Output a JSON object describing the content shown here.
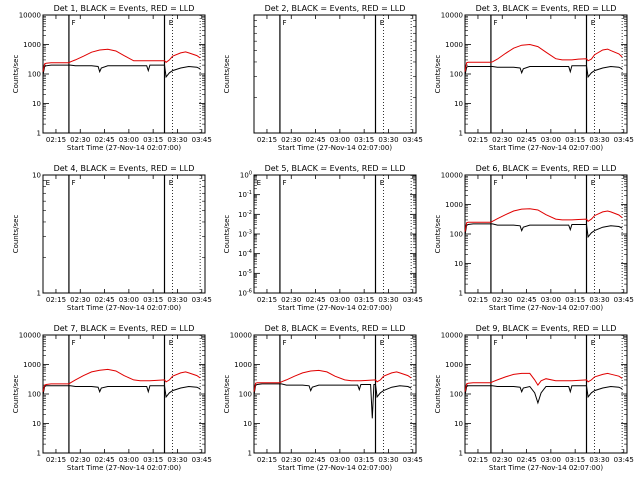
{
  "figure": {
    "xlabel": "Start Time (27-Nov-14 02:07:00)",
    "ylabel": "Counts/sec",
    "x_tick_labels": [
      "02:15",
      "02:30",
      "02:45",
      "03:00",
      "03:15",
      "03:30",
      "03:45"
    ],
    "colors": {
      "events": "#000000",
      "lld": "#e00000"
    }
  },
  "chart_data": [
    {
      "type": "line",
      "title": "Det 1, BLACK = Events, RED = LLD",
      "yscale": "log",
      "ylim": [
        1,
        10000
      ],
      "y_tick_labels": [
        "1",
        "10",
        "100",
        "1000",
        "10000"
      ],
      "x_minutes": [
        0,
        100
      ],
      "vlines_solid": [
        16,
        75
      ],
      "vlines_dotted": [
        80,
        97
      ],
      "markers": [
        {
          "x": 77,
          "y": 10000,
          "text": "E"
        },
        {
          "x": 17,
          "y": 10000,
          "text": "F"
        }
      ],
      "series": [
        {
          "name": "Events",
          "x": [
            0,
            1,
            2,
            5,
            10,
            16,
            17,
            20,
            25,
            30,
            34,
            35,
            36,
            40,
            46,
            50,
            56,
            60,
            64,
            65,
            66,
            70,
            75,
            76,
            78,
            80,
            85,
            90,
            95,
            97
          ],
          "values": [
            90,
            180,
            190,
            200,
            200,
            200,
            200,
            190,
            190,
            190,
            180,
            120,
            160,
            190,
            190,
            190,
            190,
            190,
            190,
            130,
            200,
            200,
            200,
            80,
            110,
            130,
            160,
            180,
            170,
            150
          ]
        },
        {
          "name": "LLD",
          "x": [
            0,
            1,
            2,
            5,
            10,
            16,
            17,
            20,
            25,
            30,
            35,
            40,
            45,
            50,
            56,
            60,
            64,
            66,
            70,
            75,
            76,
            78,
            80,
            85,
            88,
            90,
            95,
            97
          ],
          "values": [
            120,
            220,
            230,
            240,
            240,
            240,
            260,
            300,
            400,
            550,
            650,
            690,
            600,
            420,
            280,
            280,
            280,
            280,
            280,
            280,
            250,
            300,
            400,
            520,
            560,
            520,
            420,
            350
          ]
        }
      ]
    },
    {
      "type": "line",
      "title": "Det 2, BLACK = Events, RED = LLD",
      "yscale": "log",
      "ylim": [
        1,
        10
      ],
      "y_tick_labels": [],
      "x_minutes": [
        0,
        100
      ],
      "vlines_solid": [
        16,
        75
      ],
      "vlines_dotted": [
        80,
        97
      ],
      "markers": [
        {
          "x": 77,
          "y": 10,
          "text": "E"
        },
        {
          "x": 17,
          "y": 10,
          "text": "F"
        }
      ],
      "series": []
    },
    {
      "type": "line",
      "title": "Det 3, BLACK = Events, RED = LLD",
      "yscale": "log",
      "ylim": [
        1,
        10000
      ],
      "y_tick_labels": [
        "1",
        "10",
        "100",
        "1000",
        "10000"
      ],
      "x_minutes": [
        0,
        100
      ],
      "vlines_solid": [
        16,
        75
      ],
      "vlines_dotted": [
        80,
        97
      ],
      "markers": [
        {
          "x": 77,
          "y": 10000,
          "text": "E"
        },
        {
          "x": 17,
          "y": 10000,
          "text": "F"
        }
      ],
      "series": [
        {
          "name": "Events",
          "x": [
            0,
            1,
            2,
            5,
            10,
            16,
            17,
            20,
            25,
            30,
            34,
            35,
            36,
            40,
            46,
            50,
            56,
            60,
            64,
            65,
            66,
            70,
            75,
            76,
            78,
            80,
            85,
            90,
            95,
            97
          ],
          "values": [
            90,
            170,
            180,
            180,
            180,
            180,
            180,
            170,
            170,
            170,
            160,
            110,
            150,
            180,
            180,
            180,
            180,
            180,
            180,
            120,
            190,
            190,
            190,
            80,
            110,
            130,
            160,
            180,
            170,
            150
          ]
        },
        {
          "name": "LLD",
          "x": [
            0,
            1,
            2,
            5,
            10,
            16,
            17,
            20,
            25,
            30,
            35,
            40,
            45,
            50,
            56,
            60,
            64,
            66,
            70,
            75,
            76,
            78,
            80,
            85,
            88,
            90,
            95,
            97
          ],
          "values": [
            120,
            240,
            250,
            250,
            250,
            250,
            260,
            320,
            500,
            750,
            950,
            1000,
            850,
            550,
            330,
            300,
            300,
            300,
            320,
            330,
            280,
            320,
            450,
            650,
            700,
            620,
            480,
            380
          ]
        }
      ]
    },
    {
      "type": "line",
      "title": "Det 4, BLACK = Events, RED = LLD",
      "yscale": "log",
      "ylim": [
        1,
        10
      ],
      "y_tick_labels": [
        "1",
        "10"
      ],
      "x_minutes": [
        0,
        100
      ],
      "vlines_solid": [
        16,
        75
      ],
      "vlines_dotted": [
        80,
        97
      ],
      "markers": [
        {
          "x": 77,
          "y": 10,
          "text": "E"
        },
        {
          "x": 17,
          "y": 10,
          "text": "F"
        },
        {
          "x": 1,
          "y": 10,
          "text": "E"
        }
      ],
      "series": []
    },
    {
      "type": "line",
      "title": "Det 5, BLACK = Events, RED = LLD",
      "yscale": "log",
      "ylim": [
        1e-06,
        1
      ],
      "y_tick_labels": [
        "10^-6",
        "10^-5",
        "10^-4",
        "10^-3",
        "10^-2",
        "10^-1",
        "10^0"
      ],
      "x_minutes": [
        0,
        100
      ],
      "vlines_solid": [
        16,
        75
      ],
      "vlines_dotted": [
        80,
        97
      ],
      "markers": [
        {
          "x": 77,
          "y": 1,
          "text": "E"
        },
        {
          "x": 17,
          "y": 1,
          "text": "F"
        },
        {
          "x": 1,
          "y": 1,
          "text": "E"
        }
      ],
      "series": []
    },
    {
      "type": "line",
      "title": "Det 6, BLACK = Events, RED = LLD",
      "yscale": "log",
      "ylim": [
        1,
        10000
      ],
      "y_tick_labels": [
        "1",
        "10",
        "100",
        "1000",
        "10000"
      ],
      "x_minutes": [
        0,
        100
      ],
      "vlines_solid": [
        16,
        75
      ],
      "vlines_dotted": [
        80,
        97
      ],
      "markers": [
        {
          "x": 77,
          "y": 10000,
          "text": "E"
        },
        {
          "x": 17,
          "y": 10000,
          "text": "F"
        }
      ],
      "series": [
        {
          "name": "Events",
          "x": [
            0,
            1,
            2,
            5,
            10,
            16,
            17,
            20,
            25,
            30,
            34,
            35,
            36,
            40,
            46,
            50,
            56,
            60,
            64,
            65,
            66,
            70,
            75,
            76,
            78,
            80,
            85,
            90,
            95,
            97
          ],
          "values": [
            90,
            200,
            210,
            220,
            220,
            220,
            220,
            200,
            200,
            200,
            190,
            130,
            170,
            200,
            200,
            200,
            200,
            200,
            200,
            140,
            210,
            210,
            210,
            80,
            110,
            130,
            170,
            190,
            180,
            160
          ]
        },
        {
          "name": "LLD",
          "x": [
            0,
            1,
            2,
            5,
            10,
            16,
            17,
            20,
            25,
            30,
            35,
            40,
            45,
            50,
            56,
            60,
            64,
            66,
            70,
            75,
            76,
            78,
            80,
            85,
            88,
            90,
            95,
            97
          ],
          "values": [
            120,
            240,
            250,
            250,
            250,
            250,
            270,
            330,
            450,
            600,
            700,
            720,
            650,
            450,
            320,
            300,
            300,
            300,
            310,
            320,
            270,
            320,
            420,
            560,
            600,
            560,
            440,
            360
          ]
        }
      ]
    },
    {
      "type": "line",
      "title": "Det 7, BLACK = Events, RED = LLD",
      "yscale": "log",
      "ylim": [
        1,
        10000
      ],
      "y_tick_labels": [
        "1",
        "10",
        "100",
        "1000",
        "10000"
      ],
      "x_minutes": [
        0,
        100
      ],
      "vlines_solid": [
        16,
        75
      ],
      "vlines_dotted": [
        80,
        97
      ],
      "markers": [
        {
          "x": 77,
          "y": 10000,
          "text": "E"
        },
        {
          "x": 17,
          "y": 10000,
          "text": "F"
        }
      ],
      "series": [
        {
          "name": "Events",
          "x": [
            0,
            1,
            2,
            5,
            10,
            16,
            17,
            20,
            25,
            30,
            34,
            35,
            36,
            40,
            46,
            50,
            56,
            60,
            64,
            65,
            66,
            70,
            75,
            76,
            78,
            80,
            85,
            90,
            95,
            97
          ],
          "values": [
            90,
            180,
            190,
            190,
            190,
            190,
            190,
            180,
            180,
            180,
            170,
            120,
            160,
            180,
            180,
            180,
            180,
            180,
            180,
            120,
            190,
            190,
            190,
            80,
            110,
            130,
            160,
            180,
            170,
            150
          ]
        },
        {
          "name": "LLD",
          "x": [
            0,
            1,
            2,
            5,
            10,
            16,
            17,
            20,
            25,
            30,
            35,
            40,
            45,
            50,
            56,
            60,
            64,
            66,
            70,
            75,
            76,
            78,
            80,
            85,
            88,
            90,
            95,
            97
          ],
          "values": [
            120,
            200,
            210,
            220,
            220,
            220,
            240,
            300,
            420,
            560,
            640,
            680,
            600,
            420,
            300,
            280,
            280,
            280,
            290,
            300,
            260,
            300,
            400,
            520,
            560,
            520,
            420,
            350
          ]
        }
      ]
    },
    {
      "type": "line",
      "title": "Det 8, BLACK = Events, RED = LLD",
      "yscale": "log",
      "ylim": [
        1,
        10000
      ],
      "y_tick_labels": [
        "1",
        "10",
        "100",
        "1000",
        "10000"
      ],
      "x_minutes": [
        0,
        100
      ],
      "vlines_solid": [
        16,
        75
      ],
      "vlines_dotted": [
        80,
        97
      ],
      "markers": [
        {
          "x": 77,
          "y": 10000,
          "text": "E"
        },
        {
          "x": 17,
          "y": 10000,
          "text": "F"
        }
      ],
      "series": [
        {
          "name": "Events",
          "x": [
            0,
            1,
            2,
            5,
            10,
            16,
            17,
            20,
            25,
            30,
            34,
            35,
            36,
            40,
            46,
            50,
            56,
            60,
            64,
            65,
            66,
            70,
            72,
            73,
            74,
            75,
            76,
            78,
            80,
            85,
            90,
            95,
            97
          ],
          "values": [
            90,
            200,
            210,
            220,
            220,
            220,
            220,
            200,
            200,
            200,
            190,
            130,
            170,
            200,
            200,
            200,
            200,
            200,
            200,
            140,
            210,
            210,
            210,
            15,
            210,
            210,
            80,
            110,
            130,
            170,
            190,
            180,
            160
          ]
        },
        {
          "name": "LLD",
          "x": [
            0,
            1,
            2,
            5,
            10,
            16,
            17,
            20,
            25,
            30,
            35,
            40,
            45,
            50,
            56,
            60,
            64,
            66,
            70,
            75,
            76,
            78,
            80,
            85,
            88,
            90,
            95,
            97
          ],
          "values": [
            120,
            230,
            240,
            240,
            240,
            240,
            260,
            300,
            400,
            520,
            600,
            630,
            560,
            400,
            300,
            280,
            280,
            280,
            290,
            300,
            260,
            300,
            400,
            520,
            560,
            520,
            420,
            350
          ]
        }
      ]
    },
    {
      "type": "line",
      "title": "Det 9, BLACK = Events, RED = LLD",
      "yscale": "log",
      "ylim": [
        1,
        10000
      ],
      "y_tick_labels": [
        "1",
        "10",
        "100",
        "1000",
        "10000"
      ],
      "x_minutes": [
        0,
        100
      ],
      "vlines_solid": [
        16,
        75
      ],
      "vlines_dotted": [
        80,
        97
      ],
      "markers": [
        {
          "x": 77,
          "y": 10000,
          "text": "E"
        },
        {
          "x": 17,
          "y": 10000,
          "text": "F"
        }
      ],
      "series": [
        {
          "name": "Events",
          "x": [
            0,
            1,
            2,
            5,
            10,
            16,
            17,
            20,
            25,
            30,
            34,
            35,
            36,
            40,
            43,
            45,
            47,
            50,
            56,
            60,
            64,
            65,
            66,
            70,
            75,
            76,
            78,
            80,
            85,
            90,
            95,
            97
          ],
          "values": [
            90,
            180,
            190,
            190,
            190,
            190,
            190,
            180,
            180,
            180,
            170,
            120,
            160,
            180,
            110,
            50,
            110,
            180,
            180,
            180,
            180,
            120,
            190,
            190,
            190,
            80,
            110,
            130,
            160,
            180,
            170,
            150
          ]
        },
        {
          "name": "LLD",
          "x": [
            0,
            1,
            2,
            5,
            10,
            16,
            17,
            20,
            25,
            30,
            35,
            40,
            43,
            45,
            47,
            50,
            56,
            60,
            64,
            66,
            70,
            75,
            76,
            78,
            80,
            85,
            88,
            90,
            95,
            97
          ],
          "values": [
            120,
            220,
            230,
            240,
            240,
            240,
            260,
            300,
            380,
            460,
            500,
            500,
            300,
            200,
            280,
            330,
            280,
            280,
            280,
            280,
            290,
            300,
            260,
            300,
            380,
            460,
            500,
            470,
            400,
            340
          ]
        }
      ]
    }
  ]
}
